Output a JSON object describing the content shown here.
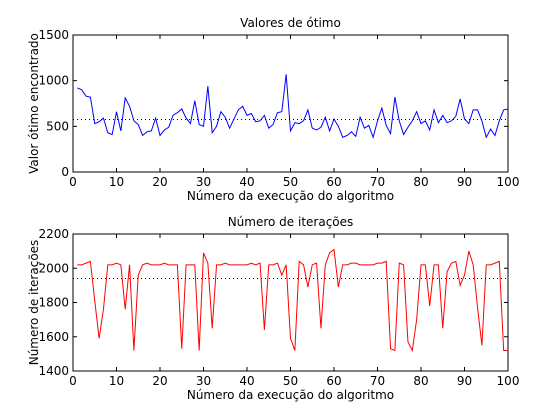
{
  "chart_data": [
    {
      "type": "line",
      "title": "Valores de ótimo",
      "xlabel": "Número da execução do algoritmo",
      "ylabel": "Valor ótimo encontrado",
      "xlim": [
        0,
        100
      ],
      "ylim": [
        0,
        1500
      ],
      "xticks": [
        "0",
        "10",
        "20",
        "30",
        "40",
        "50",
        "60",
        "70",
        "80",
        "90",
        "100"
      ],
      "yticks": [
        "0",
        "500",
        "1000",
        "1500"
      ],
      "grid": false,
      "series": [
        {
          "color": "#0000ff",
          "style": "solid",
          "x": [
            1,
            2,
            3,
            4,
            5,
            6,
            7,
            8,
            9,
            10,
            11,
            12,
            13,
            14,
            15,
            16,
            17,
            18,
            19,
            20,
            21,
            22,
            23,
            24,
            25,
            26,
            27,
            28,
            29,
            30,
            31,
            32,
            33,
            34,
            35,
            36,
            37,
            38,
            39,
            40,
            41,
            42,
            43,
            44,
            45,
            46,
            47,
            48,
            49,
            50,
            51,
            52,
            53,
            54,
            55,
            56,
            57,
            58,
            59,
            60,
            61,
            62,
            63,
            64,
            65,
            66,
            67,
            68,
            69,
            70,
            71,
            72,
            73,
            74,
            75,
            76,
            77,
            78,
            79,
            80,
            81,
            82,
            83,
            84,
            85,
            86,
            87,
            88,
            89,
            90,
            91,
            92,
            93,
            94,
            95,
            96,
            97,
            98,
            99,
            100
          ],
          "y": [
            920,
            900,
            830,
            820,
            530,
            550,
            590,
            430,
            410,
            660,
            450,
            810,
            720,
            560,
            520,
            400,
            440,
            450,
            590,
            400,
            460,
            490,
            620,
            650,
            690,
            590,
            530,
            780,
            520,
            500,
            940,
            430,
            500,
            660,
            600,
            480,
            580,
            680,
            720,
            620,
            640,
            550,
            560,
            620,
            480,
            520,
            650,
            660,
            1070,
            450,
            540,
            530,
            560,
            680,
            480,
            460,
            490,
            600,
            450,
            580,
            500,
            380,
            400,
            440,
            390,
            600,
            480,
            510,
            380,
            560,
            700,
            510,
            420,
            820,
            560,
            410,
            490,
            560,
            660,
            530,
            560,
            460,
            680,
            540,
            620,
            540,
            560,
            610,
            800,
            580,
            530,
            680,
            680,
            560,
            380,
            470,
            400,
            560,
            680,
            690
          ]
        },
        {
          "color": "#000000",
          "style": "dotted",
          "x": [
            0,
            100
          ],
          "y": [
            575,
            575
          ]
        }
      ]
    },
    {
      "type": "line",
      "title": "Número de iterações",
      "xlabel": "Número da execução do algoritmo",
      "ylabel": "Número de iterações",
      "xlim": [
        0,
        100
      ],
      "ylim": [
        1400,
        2200
      ],
      "xticks": [
        "0",
        "10",
        "20",
        "30",
        "40",
        "50",
        "60",
        "70",
        "80",
        "90",
        "100"
      ],
      "yticks": [
        "1400",
        "1600",
        "1800",
        "2000",
        "2200"
      ],
      "grid": false,
      "series": [
        {
          "color": "#ff0000",
          "style": "solid",
          "x": [
            1,
            2,
            3,
            4,
            5,
            6,
            7,
            8,
            9,
            10,
            11,
            12,
            13,
            14,
            15,
            16,
            17,
            18,
            19,
            20,
            21,
            22,
            23,
            24,
            25,
            26,
            27,
            28,
            29,
            30,
            31,
            32,
            33,
            34,
            35,
            36,
            37,
            38,
            39,
            40,
            41,
            42,
            43,
            44,
            45,
            46,
            47,
            48,
            49,
            50,
            51,
            52,
            53,
            54,
            55,
            56,
            57,
            58,
            59,
            60,
            61,
            62,
            63,
            64,
            65,
            66,
            67,
            68,
            69,
            70,
            71,
            72,
            73,
            74,
            75,
            76,
            77,
            78,
            79,
            80,
            81,
            82,
            83,
            84,
            85,
            86,
            87,
            88,
            89,
            90,
            91,
            92,
            93,
            94,
            95,
            96,
            97,
            98,
            99,
            100
          ],
          "y": [
            2020,
            2020,
            2030,
            2040,
            1810,
            1590,
            1760,
            2020,
            2020,
            2030,
            2020,
            1760,
            2020,
            1520,
            1960,
            2020,
            2030,
            2020,
            2020,
            2020,
            2030,
            2020,
            2020,
            2020,
            1530,
            2020,
            2020,
            2020,
            1520,
            2090,
            2030,
            1650,
            2020,
            2020,
            2030,
            2020,
            2020,
            2020,
            2020,
            2020,
            2030,
            2020,
            2030,
            1640,
            2020,
            2020,
            2030,
            1960,
            2020,
            1590,
            1520,
            2040,
            2020,
            1890,
            2020,
            2030,
            1650,
            2020,
            2090,
            2110,
            1890,
            2020,
            2020,
            2030,
            2030,
            2020,
            2020,
            2020,
            2020,
            2030,
            2030,
            2040,
            1530,
            1520,
            2030,
            2020,
            1570,
            1520,
            1700,
            2020,
            2020,
            1780,
            2020,
            2020,
            1650,
            1980,
            2030,
            2040,
            1900,
            1960,
            2100,
            2020,
            1770,
            1550,
            2020,
            2020,
            2030,
            2040,
            1520,
            1520
          ]
        },
        {
          "color": "#000000",
          "style": "dotted",
          "x": [
            0,
            100
          ],
          "y": [
            1940,
            1940
          ]
        }
      ]
    }
  ]
}
